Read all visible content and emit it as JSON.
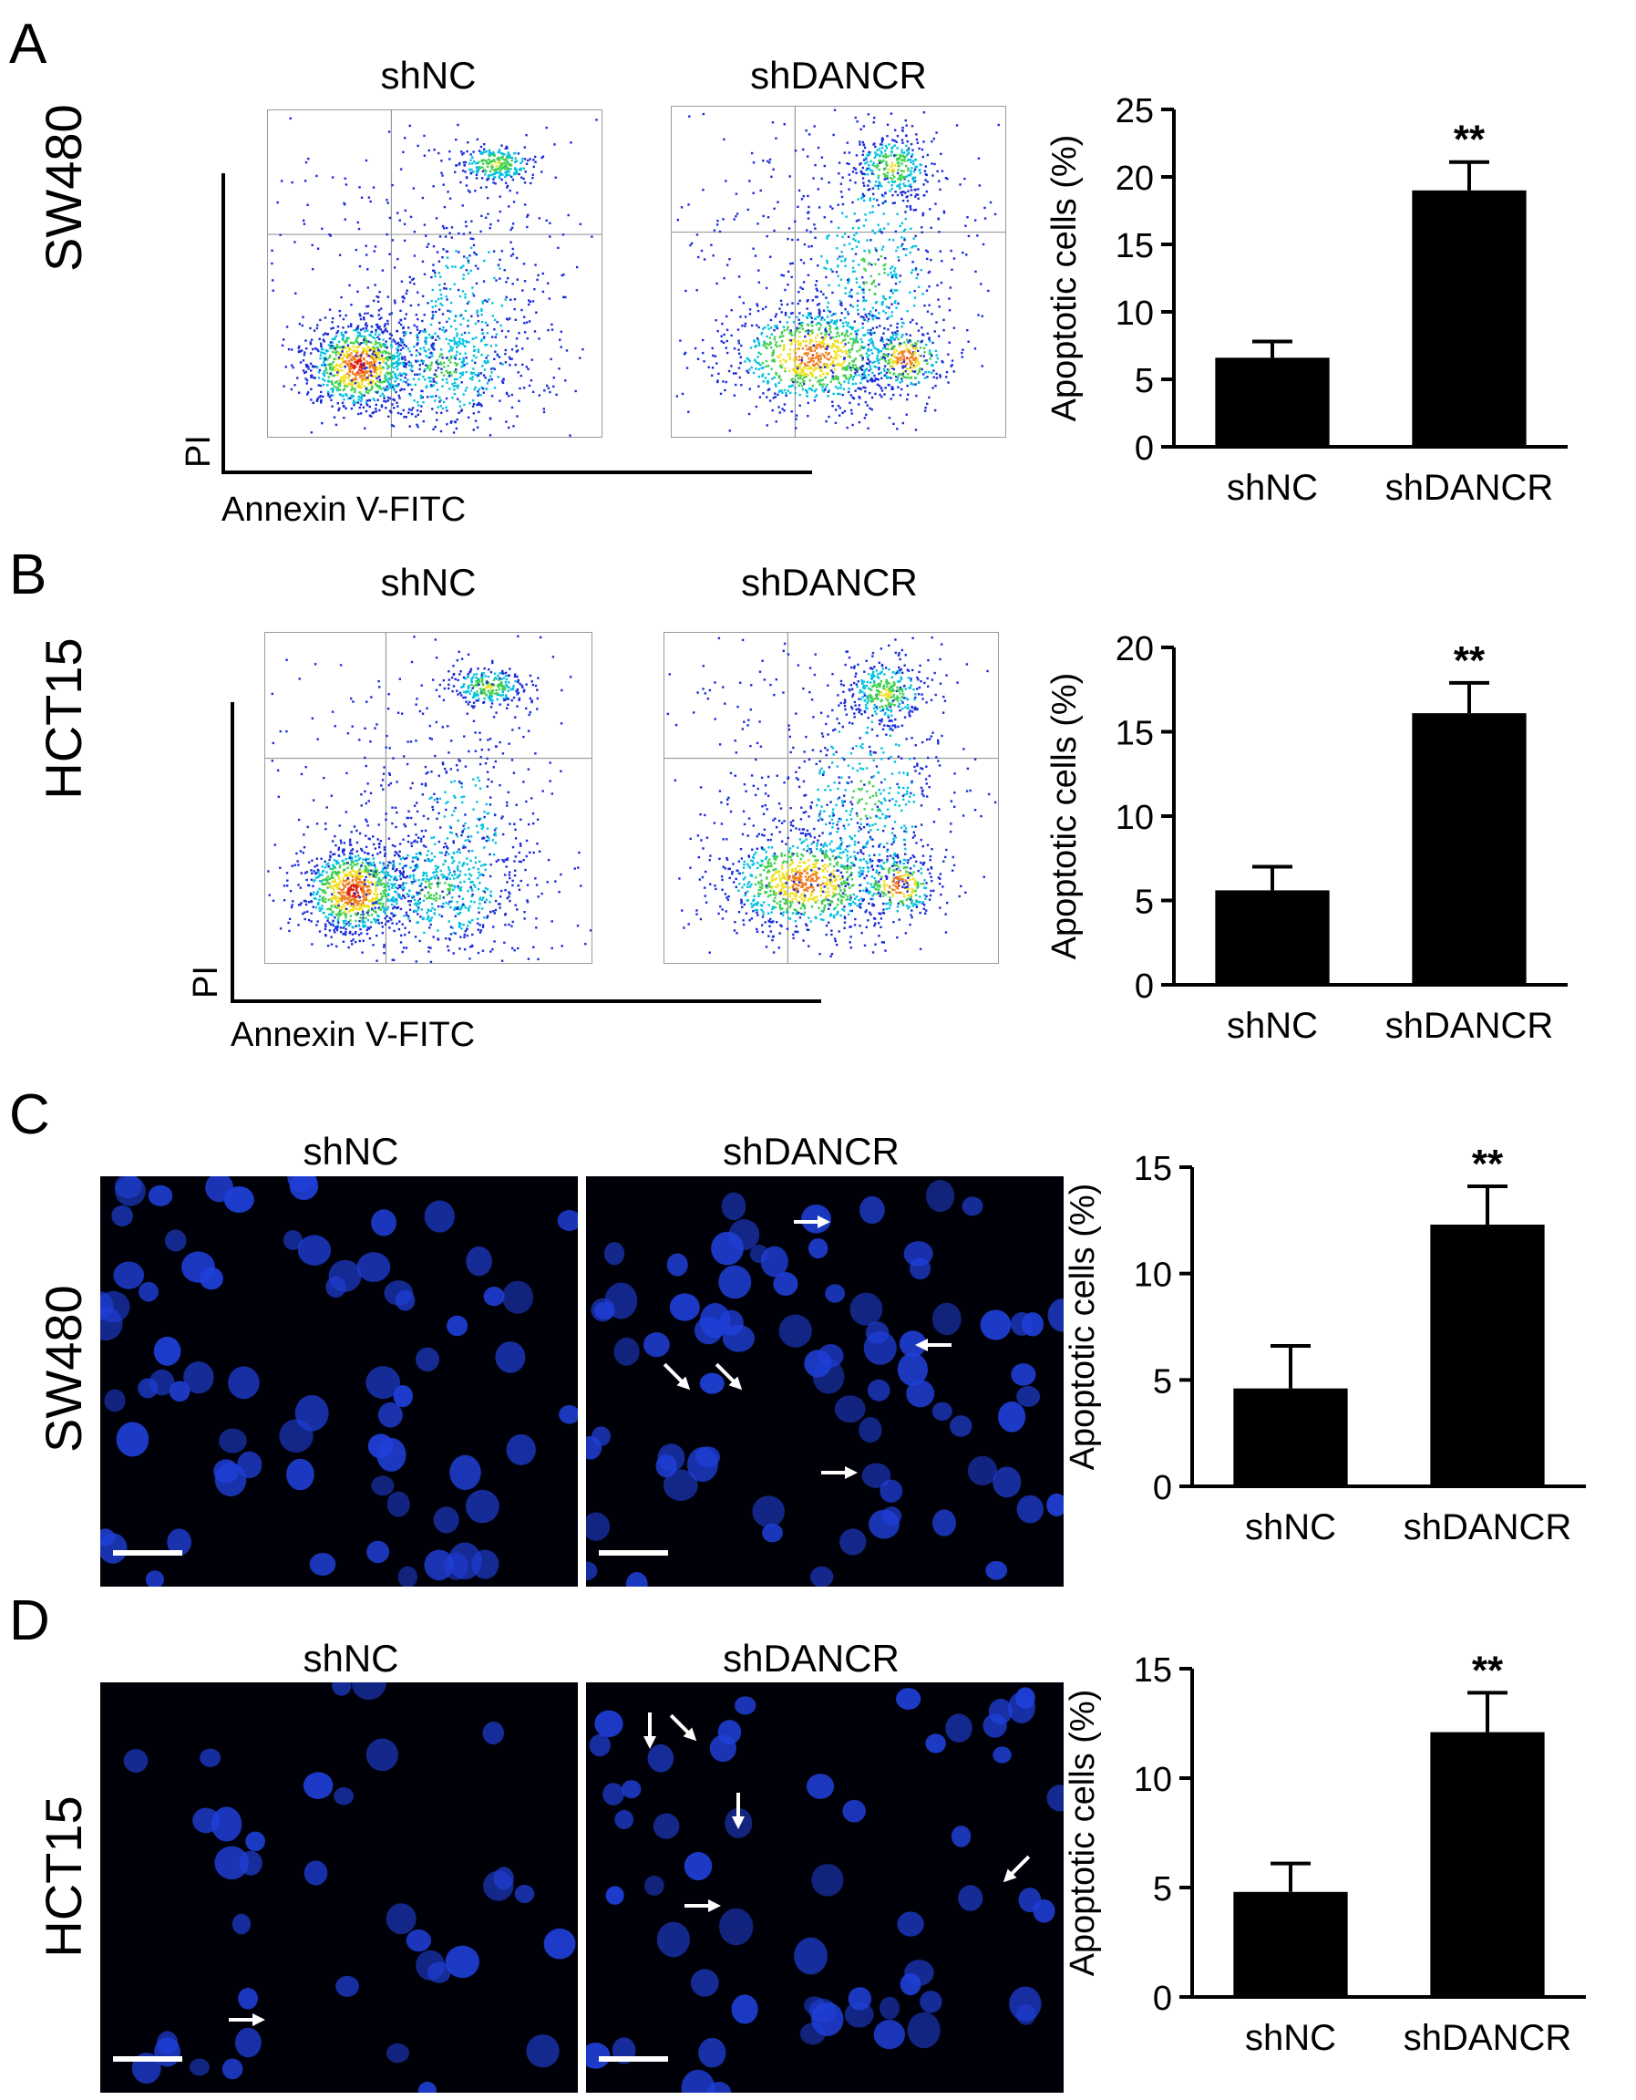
{
  "panels": [
    {
      "letter": "A",
      "cell_line": "SW480",
      "assay": "flow",
      "groups": [
        "shNC",
        "shDANCR"
      ],
      "x_axis_label": "Annexin V-FITC",
      "y_axis_label": "PI"
    },
    {
      "letter": "B",
      "cell_line": "HCT15",
      "assay": "flow",
      "groups": [
        "shNC",
        "shDANCR"
      ],
      "x_axis_label": "Annexin V-FITC",
      "y_axis_label": "PI"
    },
    {
      "letter": "C",
      "cell_line": "SW480",
      "assay": "staining",
      "groups": [
        "shNC",
        "shDANCR"
      ]
    },
    {
      "letter": "D",
      "cell_line": "HCT15",
      "assay": "staining",
      "groups": [
        "shNC",
        "shDANCR"
      ]
    }
  ],
  "colors": {
    "bar": "#000000",
    "nucleus": "#1f3fd8",
    "micro_background": "#000008",
    "arrow": "#ffffff",
    "flow_dots": [
      "#1a2bd8",
      "#00c0e0",
      "#40d050",
      "#f0e020",
      "#f08020",
      "#e02010"
    ]
  },
  "chart_data": [
    {
      "type": "bar",
      "panel": "A",
      "categories": [
        "shNC",
        "shDANCR"
      ],
      "values": [
        6.6,
        19.0
      ],
      "errors": [
        1.2,
        2.1
      ],
      "significance": [
        "",
        "**"
      ],
      "ylabel": "Apoptotic cells (%)",
      "ylim": [
        0,
        25
      ],
      "yticks": [
        0,
        5,
        10,
        15,
        20,
        25
      ]
    },
    {
      "type": "bar",
      "panel": "B",
      "categories": [
        "shNC",
        "shDANCR"
      ],
      "values": [
        5.6,
        16.1
      ],
      "errors": [
        1.4,
        1.8
      ],
      "significance": [
        "",
        "**"
      ],
      "ylabel": "Apoptotic cells (%)",
      "ylim": [
        0,
        20
      ],
      "yticks": [
        0,
        5,
        10,
        15,
        20
      ]
    },
    {
      "type": "bar",
      "panel": "C",
      "categories": [
        "shNC",
        "shDANCR"
      ],
      "values": [
        4.6,
        12.3
      ],
      "errors": [
        2.0,
        1.8
      ],
      "significance": [
        "",
        "**"
      ],
      "ylabel": "Apoptotic cells (%)",
      "ylim": [
        0,
        15
      ],
      "yticks": [
        0,
        5,
        10,
        15
      ]
    },
    {
      "type": "bar",
      "panel": "D",
      "categories": [
        "shNC",
        "shDANCR"
      ],
      "values": [
        4.8,
        12.1
      ],
      "errors": [
        1.3,
        1.8
      ],
      "significance": [
        "",
        "**"
      ],
      "ylabel": "Apoptotic cells (%)",
      "ylim": [
        0,
        15
      ],
      "yticks": [
        0,
        5,
        10,
        15
      ]
    }
  ]
}
